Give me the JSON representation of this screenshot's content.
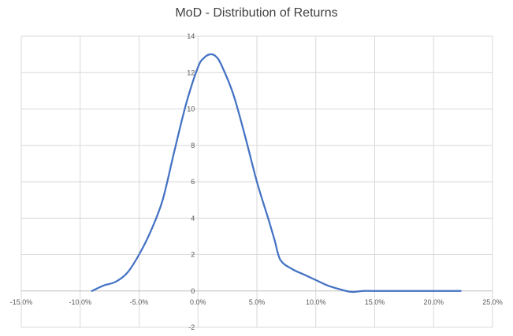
{
  "chart_data": {
    "type": "line",
    "title": "MoD - Distribution of Returns",
    "xlabel": "",
    "ylabel": "",
    "xlim": [
      -0.15,
      0.25
    ],
    "ylim": [
      -2,
      14
    ],
    "x_ticks": [
      -0.15,
      -0.1,
      -0.05,
      0.0,
      0.05,
      0.1,
      0.15,
      0.2,
      0.25
    ],
    "x_tick_labels": [
      "-15.0%",
      "-10.0%",
      "-5.0%",
      "0.0%",
      "5.0%",
      "10.0%",
      "15.0%",
      "20.0%",
      "25.0%"
    ],
    "y_ticks": [
      -2,
      0,
      2,
      4,
      6,
      8,
      10,
      12,
      14
    ],
    "y_tick_labels": [
      "-2",
      "0",
      "2",
      "4",
      "6",
      "8",
      "10",
      "12",
      "14"
    ],
    "grid": true,
    "legend": "none",
    "series": [
      {
        "color": "#4472C4",
        "x": [
          -0.09,
          -0.08,
          -0.07,
          -0.06,
          -0.05,
          -0.04,
          -0.03,
          -0.02,
          -0.01,
          0.0,
          0.005,
          0.01,
          0.015,
          0.02,
          0.03,
          0.04,
          0.05,
          0.06,
          0.065,
          0.07,
          0.08,
          0.09,
          0.1,
          0.11,
          0.12,
          0.13,
          0.14,
          0.15,
          0.16,
          0.18,
          0.2,
          0.223
        ],
        "y": [
          0.0,
          0.3,
          0.5,
          1.0,
          2.0,
          3.3,
          5.0,
          7.7,
          10.3,
          12.3,
          12.8,
          13.0,
          12.9,
          12.4,
          10.8,
          8.5,
          6.0,
          3.9,
          2.8,
          1.7,
          1.2,
          0.9,
          0.6,
          0.3,
          0.1,
          -0.05,
          0.0,
          0.0,
          0.0,
          0.0,
          0.0,
          0.0
        ]
      }
    ]
  }
}
